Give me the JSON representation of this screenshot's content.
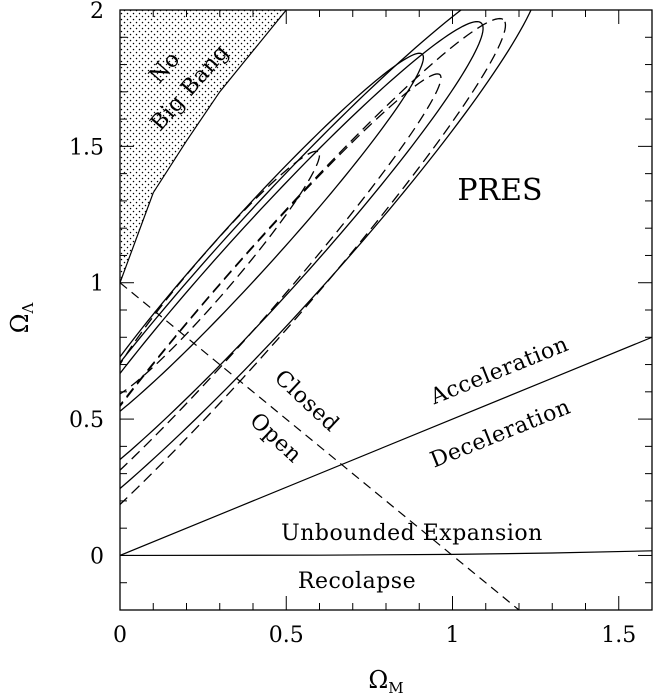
{
  "chart_data": {
    "type": "line",
    "xlabel": "Ω",
    "xlabel_sub": "M",
    "ylabel": "Ω",
    "ylabel_sub": "Λ",
    "xlim": [
      0,
      1.6
    ],
    "ylim": [
      -0.2,
      2.0
    ],
    "xticks": [
      0,
      0.5,
      1,
      1.5
    ],
    "xtick_labels": [
      "0",
      "0.5",
      "1",
      "1.5"
    ],
    "yticks": [
      0,
      0.5,
      1,
      1.5,
      2
    ],
    "ytick_labels": [
      "0",
      "0.5",
      "1",
      "1.5",
      "2"
    ],
    "minor_tick_step": 0.1,
    "grid": false,
    "annotations": {
      "no_big_bang": [
        "No",
        "Big Bang"
      ],
      "survey": "PRES",
      "acceleration": "Acceleration",
      "deceleration": "Deceleration",
      "closed": "Closed",
      "open": "Open",
      "unbounded": "Unbounded Expansion",
      "recollapse": "Recolapse"
    },
    "boundaries": {
      "no_big_bang": {
        "x": [
          0,
          0.1,
          0.2,
          0.3,
          0.4,
          0.5
        ],
        "y": [
          1.0,
          1.33,
          1.52,
          1.7,
          1.85,
          2.0
        ]
      },
      "acceleration_deceleration": {
        "x": [
          0,
          1.6
        ],
        "y": [
          0,
          0.8
        ]
      },
      "closed_open": {
        "x": [
          0,
          1.2
        ],
        "y": [
          1.0,
          -0.2
        ]
      },
      "recollapse": {
        "x": [
          0,
          0.6,
          1.0,
          1.3,
          1.6
        ],
        "y": [
          0,
          0.001,
          0.004,
          0.009,
          0.017
        ]
      }
    },
    "series": [
      {
        "style": "solid",
        "cx": 0.39,
        "cy": 1.14,
        "a": 0.87,
        "b": 0.09,
        "angle_deg": 53.5
      },
      {
        "style": "solid",
        "cx": 0.43,
        "cy": 1.07,
        "a": 1.1,
        "b": 0.125,
        "angle_deg": 53.5
      },
      {
        "style": "solid",
        "cx": 0.46,
        "cy": 1.07,
        "a": 1.33,
        "b": 0.17,
        "angle_deg": 53.5
      },
      {
        "style": "dashed",
        "cx": 0.28,
        "cy": 1.03,
        "a": 0.55,
        "b": 0.065,
        "angle_deg": 55
      },
      {
        "style": "dashed",
        "cx": 0.38,
        "cy": 0.95,
        "a": 1.0,
        "b": 0.09,
        "angle_deg": 54.5
      },
      {
        "style": "dashed",
        "cx": 0.42,
        "cy": 0.94,
        "a": 1.26,
        "b": 0.13,
        "angle_deg": 54.5
      }
    ]
  }
}
